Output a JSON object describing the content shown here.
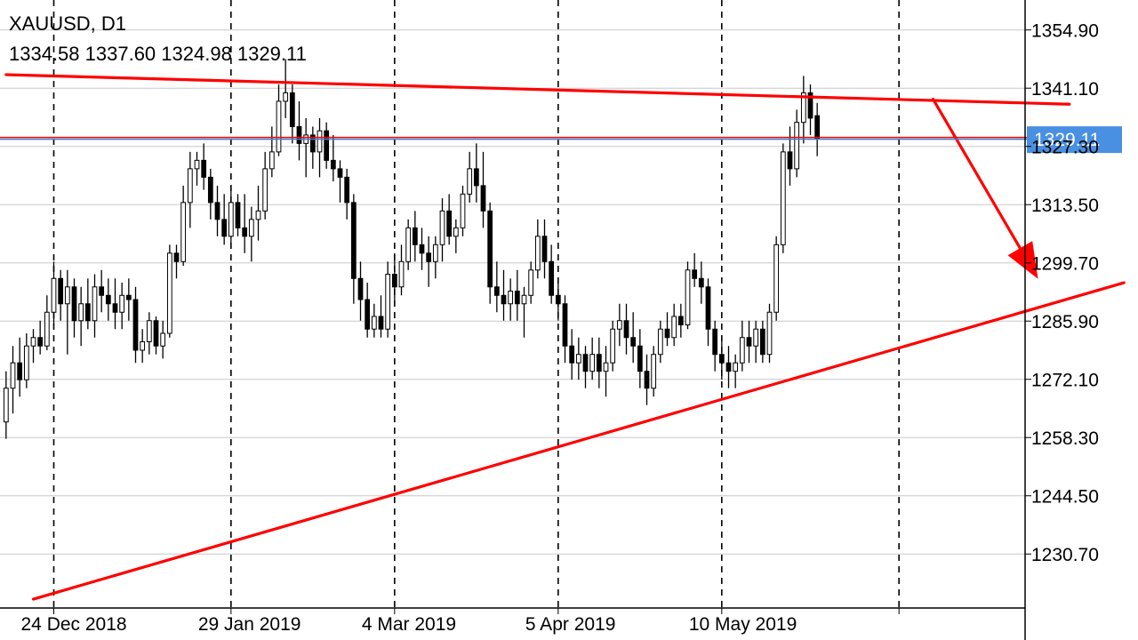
{
  "header": {
    "symbol": "XAUUSD, D1",
    "ohlc": "1334.58 1337.60 1324.98 1329.11"
  },
  "colors": {
    "candle": "#000000",
    "grid": "#000000",
    "trendline": "#ff0000",
    "price_line": "#4a7fd6",
    "price_tag_bg": "#4a90e2"
  },
  "chart_data": {
    "type": "candlestick",
    "symbol": "XAUUSD",
    "timeframe": "D1",
    "y_ticks": [
      "1354.90",
      "1341.10",
      "1327.30",
      "1313.50",
      "1299.70",
      "1285.90",
      "1272.10",
      "1258.30",
      "1244.50",
      "1230.70"
    ],
    "ylim": [
      1217.9,
      1362.0
    ],
    "x_ticks": [
      {
        "label": "24 Dec 2018",
        "index": 7
      },
      {
        "label": "29 Jan 2019",
        "index": 33
      },
      {
        "label": "4 Mar 2019",
        "index": 57
      },
      {
        "label": "5 Apr 2019",
        "index": 81
      },
      {
        "label": "10 May 2019",
        "index": 105
      },
      {
        "label": "",
        "index": 131
      }
    ],
    "n_slots": 150,
    "current_price": "1329.11",
    "trendlines": [
      {
        "name": "resistance",
        "from": {
          "index": 0,
          "price": 1344.3
        },
        "to": {
          "index": 156,
          "price": 1337.3
        }
      },
      {
        "name": "support",
        "from": {
          "index": 4,
          "price": 1220.0
        },
        "to": {
          "index": 164,
          "price": 1295.0
        }
      },
      {
        "name": "arrow",
        "from": {
          "index": 136,
          "price": 1338.5
        },
        "to": {
          "index": 151,
          "price": 1297.0
        }
      }
    ],
    "candles": [
      [
        1262,
        1274,
        1258,
        1270
      ],
      [
        1270,
        1280,
        1264,
        1276
      ],
      [
        1276,
        1282,
        1268,
        1272
      ],
      [
        1272,
        1283,
        1270,
        1280
      ],
      [
        1280,
        1284,
        1276,
        1282
      ],
      [
        1282,
        1286,
        1278,
        1280
      ],
      [
        1280,
        1292,
        1279,
        1288
      ],
      [
        1288,
        1300,
        1285,
        1296
      ],
      [
        1296,
        1298,
        1286,
        1290
      ],
      [
        1290,
        1298,
        1278,
        1294
      ],
      [
        1294,
        1296,
        1282,
        1286
      ],
      [
        1286,
        1294,
        1280,
        1290
      ],
      [
        1290,
        1296,
        1284,
        1286
      ],
      [
        1286,
        1297,
        1282,
        1294
      ],
      [
        1294,
        1298,
        1288,
        1292
      ],
      [
        1292,
        1296,
        1286,
        1290
      ],
      [
        1290,
        1296,
        1284,
        1288
      ],
      [
        1288,
        1295,
        1284,
        1292
      ],
      [
        1292,
        1296,
        1286,
        1291
      ],
      [
        1291,
        1294,
        1276,
        1279
      ],
      [
        1279,
        1284,
        1276,
        1281
      ],
      [
        1281,
        1288,
        1278,
        1286
      ],
      [
        1286,
        1287,
        1278,
        1280
      ],
      [
        1280,
        1286,
        1277,
        1283
      ],
      [
        1283,
        1304,
        1282,
        1302
      ],
      [
        1302,
        1304,
        1296,
        1300
      ],
      [
        1300,
        1318,
        1299,
        1314
      ],
      [
        1314,
        1326,
        1308,
        1322
      ],
      [
        1322,
        1326,
        1318,
        1324
      ],
      [
        1324,
        1328,
        1317,
        1320
      ],
      [
        1320,
        1322,
        1310,
        1314
      ],
      [
        1314,
        1318,
        1306,
        1310
      ],
      [
        1310,
        1316,
        1304,
        1306
      ],
      [
        1306,
        1318,
        1304,
        1314
      ],
      [
        1314,
        1316,
        1306,
        1308
      ],
      [
        1308,
        1316,
        1302,
        1306
      ],
      [
        1306,
        1313,
        1300,
        1310
      ],
      [
        1310,
        1318,
        1305,
        1312
      ],
      [
        1312,
        1326,
        1310,
        1322
      ],
      [
        1322,
        1332,
        1320,
        1326
      ],
      [
        1326,
        1342,
        1325,
        1338
      ],
      [
        1338,
        1348,
        1334,
        1340
      ],
      [
        1340,
        1342,
        1328,
        1332
      ],
      [
        1332,
        1338,
        1324,
        1328
      ],
      [
        1328,
        1334,
        1320,
        1330
      ],
      [
        1330,
        1332,
        1322,
        1326
      ],
      [
        1326,
        1334,
        1320,
        1331
      ],
      [
        1331,
        1333,
        1322,
        1324
      ],
      [
        1324,
        1330,
        1319,
        1322
      ],
      [
        1322,
        1324,
        1314,
        1320
      ],
      [
        1320,
        1322,
        1310,
        1314
      ],
      [
        1314,
        1316,
        1290,
        1296
      ],
      [
        1296,
        1300,
        1286,
        1291
      ],
      [
        1291,
        1295,
        1282,
        1284
      ],
      [
        1284,
        1290,
        1282,
        1287
      ],
      [
        1287,
        1292,
        1282,
        1284
      ],
      [
        1284,
        1300,
        1282,
        1297
      ],
      [
        1297,
        1302,
        1290,
        1294
      ],
      [
        1294,
        1304,
        1292,
        1300
      ],
      [
        1300,
        1310,
        1298,
        1308
      ],
      [
        1308,
        1312,
        1300,
        1304
      ],
      [
        1304,
        1308,
        1298,
        1302
      ],
      [
        1302,
        1306,
        1294,
        1300
      ],
      [
        1300,
        1306,
        1296,
        1304
      ],
      [
        1304,
        1315,
        1300,
        1312
      ],
      [
        1312,
        1316,
        1304,
        1306
      ],
      [
        1306,
        1310,
        1302,
        1308
      ],
      [
        1308,
        1318,
        1306,
        1316
      ],
      [
        1316,
        1326,
        1314,
        1322
      ],
      [
        1322,
        1328,
        1314,
        1318
      ],
      [
        1318,
        1326,
        1308,
        1312
      ],
      [
        1312,
        1314,
        1290,
        1294
      ],
      [
        1294,
        1300,
        1288,
        1292
      ],
      [
        1292,
        1298,
        1286,
        1290
      ],
      [
        1290,
        1296,
        1286,
        1293
      ],
      [
        1293,
        1298,
        1286,
        1290
      ],
      [
        1290,
        1294,
        1282,
        1292
      ],
      [
        1292,
        1300,
        1290,
        1298
      ],
      [
        1298,
        1310,
        1296,
        1306
      ],
      [
        1306,
        1310,
        1296,
        1300
      ],
      [
        1300,
        1304,
        1290,
        1292
      ],
      [
        1292,
        1296,
        1286,
        1290
      ],
      [
        1290,
        1292,
        1276,
        1280
      ],
      [
        1280,
        1284,
        1272,
        1276
      ],
      [
        1276,
        1282,
        1272,
        1278
      ],
      [
        1278,
        1280,
        1270,
        1274
      ],
      [
        1274,
        1282,
        1272,
        1278
      ],
      [
        1278,
        1282,
        1270,
        1274
      ],
      [
        1274,
        1280,
        1268,
        1276
      ],
      [
        1276,
        1286,
        1274,
        1284
      ],
      [
        1284,
        1290,
        1280,
        1286
      ],
      [
        1286,
        1290,
        1278,
        1282
      ],
      [
        1282,
        1288,
        1276,
        1280
      ],
      [
        1280,
        1284,
        1270,
        1274
      ],
      [
        1274,
        1278,
        1266,
        1270
      ],
      [
        1270,
        1280,
        1268,
        1278
      ],
      [
        1278,
        1286,
        1276,
        1284
      ],
      [
        1284,
        1288,
        1280,
        1282
      ],
      [
        1282,
        1290,
        1280,
        1287
      ],
      [
        1287,
        1290,
        1282,
        1285
      ],
      [
        1285,
        1300,
        1284,
        1298
      ],
      [
        1298,
        1302,
        1294,
        1296
      ],
      [
        1296,
        1300,
        1290,
        1294
      ],
      [
        1294,
        1296,
        1280,
        1284
      ],
      [
        1284,
        1286,
        1274,
        1278
      ],
      [
        1278,
        1282,
        1272,
        1276
      ],
      [
        1276,
        1280,
        1270,
        1274
      ],
      [
        1274,
        1278,
        1270,
        1276
      ],
      [
        1276,
        1286,
        1274,
        1282
      ],
      [
        1282,
        1286,
        1276,
        1280
      ],
      [
        1280,
        1286,
        1276,
        1284
      ],
      [
        1284,
        1286,
        1276,
        1278
      ],
      [
        1278,
        1290,
        1276,
        1288
      ],
      [
        1288,
        1306,
        1286,
        1304
      ],
      [
        1304,
        1328,
        1302,
        1326
      ],
      [
        1326,
        1332,
        1318,
        1322
      ],
      [
        1322,
        1336,
        1320,
        1333
      ],
      [
        1333,
        1344,
        1328,
        1340
      ],
      [
        1340,
        1342,
        1330,
        1334
      ],
      [
        1334.58,
        1337.6,
        1324.98,
        1329.11
      ]
    ]
  }
}
